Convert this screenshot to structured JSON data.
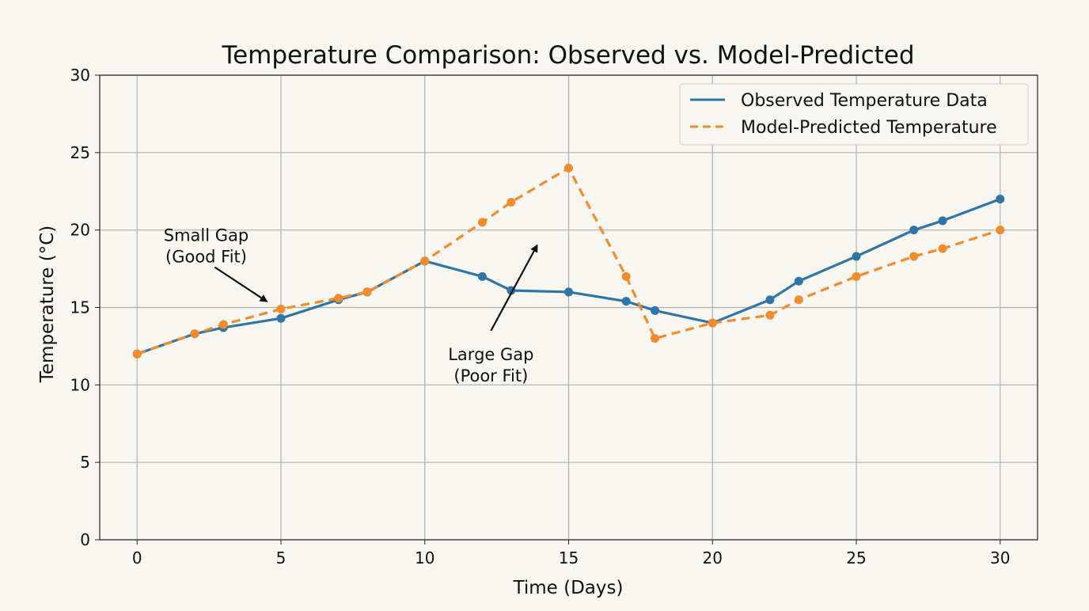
{
  "chart_data": {
    "type": "line",
    "title": "Temperature Comparison: Observed vs. Model-Predicted",
    "xlabel": "Time (Days)",
    "ylabel": "Temperature (°C)",
    "xlim": [
      -1.3,
      31.3
    ],
    "ylim": [
      0,
      30
    ],
    "xticks": [
      0,
      5,
      10,
      15,
      20,
      25,
      30
    ],
    "yticks": [
      0,
      5,
      10,
      15,
      20,
      25,
      30
    ],
    "grid": true,
    "legend_position": "top-right",
    "series": [
      {
        "name": "Observed Temperature Data",
        "color": "#2e75a8",
        "style": "solid",
        "x": [
          0,
          2,
          3,
          5,
          7,
          8,
          10,
          12,
          13,
          15,
          17,
          18,
          20,
          22,
          23,
          25,
          27,
          28,
          30
        ],
        "y": [
          12,
          13.3,
          13.7,
          14.3,
          15.5,
          16,
          18,
          17,
          16.1,
          16,
          15.4,
          14.8,
          14,
          15.5,
          16.7,
          18.3,
          20,
          20.6,
          22
        ]
      },
      {
        "name": "Model-Predicted Temperature",
        "color": "#f28b2a",
        "style": "dashed",
        "x": [
          0,
          2,
          3,
          5,
          7,
          8,
          10,
          12,
          13,
          15,
          17,
          18,
          20,
          22,
          23,
          25,
          27,
          28,
          30
        ],
        "y": [
          12,
          13.3,
          13.9,
          14.9,
          15.6,
          16,
          18,
          20.5,
          21.8,
          24,
          17,
          13,
          14,
          14.5,
          15.5,
          17,
          18.3,
          18.8,
          20
        ]
      }
    ],
    "annotations": [
      {
        "lines": [
          "Small Gap",
          "(Good Fit)"
        ],
        "text_at": [
          2.4,
          19.3
        ],
        "arrow_from": [
          2.7,
          17.6
        ],
        "arrow_to": [
          4.5,
          15.4
        ]
      },
      {
        "lines": [
          "Large Gap",
          "(Poor Fit)"
        ],
        "text_at": [
          12.3,
          11.6
        ],
        "arrow_from": [
          12.3,
          13.5
        ],
        "arrow_to": [
          13.9,
          19.0
        ]
      }
    ]
  }
}
